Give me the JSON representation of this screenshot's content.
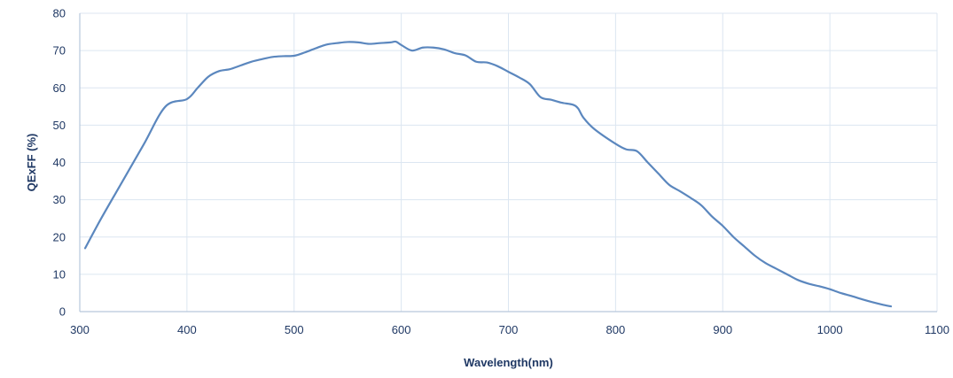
{
  "chart_data": {
    "type": "line",
    "title": "",
    "xlabel": "Wavelength(nm)",
    "ylabel": "QExFF (%)",
    "xlim": [
      300,
      1100
    ],
    "ylim": [
      0,
      80
    ],
    "x_ticks": [
      300,
      400,
      500,
      600,
      700,
      800,
      900,
      1000,
      1100
    ],
    "y_ticks": [
      0,
      10,
      20,
      30,
      40,
      50,
      60,
      70,
      80
    ],
    "grid": true,
    "legend": "none",
    "series_color": "#5b87be",
    "grid_color": "#dce6f1",
    "axis_color": "#b7c8dc",
    "text_color": "#1f3864",
    "series": [
      {
        "x": [
          305,
          320,
          340,
          360,
          380,
          400,
          410,
          420,
          430,
          440,
          450,
          460,
          470,
          480,
          490,
          500,
          510,
          520,
          530,
          540,
          550,
          560,
          570,
          580,
          590,
          595,
          600,
          610,
          620,
          630,
          640,
          650,
          660,
          670,
          680,
          690,
          700,
          710,
          720,
          730,
          740,
          750,
          760,
          765,
          770,
          780,
          800,
          810,
          820,
          830,
          840,
          850,
          860,
          870,
          880,
          890,
          900,
          910,
          920,
          930,
          940,
          950,
          960,
          970,
          980,
          990,
          1000,
          1010,
          1020,
          1030,
          1040,
          1050,
          1057
        ],
        "y": [
          17,
          25,
          35,
          45,
          55,
          57,
          60,
          63,
          64.5,
          65,
          66,
          67,
          67.7,
          68.3,
          68.5,
          68.6,
          69.5,
          70.6,
          71.6,
          72,
          72.3,
          72.2,
          71.8,
          72,
          72.2,
          72.4,
          71.5,
          70,
          70.8,
          70.8,
          70.3,
          69.3,
          68.7,
          67,
          66.8,
          65.8,
          64.3,
          62.8,
          61,
          57.5,
          56.8,
          56,
          55.5,
          54.5,
          52,
          49,
          45,
          43.5,
          43,
          40,
          37,
          34,
          32.3,
          30.5,
          28.5,
          25.5,
          23,
          20,
          17.5,
          15,
          13,
          11.5,
          10,
          8.5,
          7.5,
          6.8,
          6,
          5,
          4.2,
          3.3,
          2.5,
          1.8,
          1.4
        ]
      }
    ]
  }
}
